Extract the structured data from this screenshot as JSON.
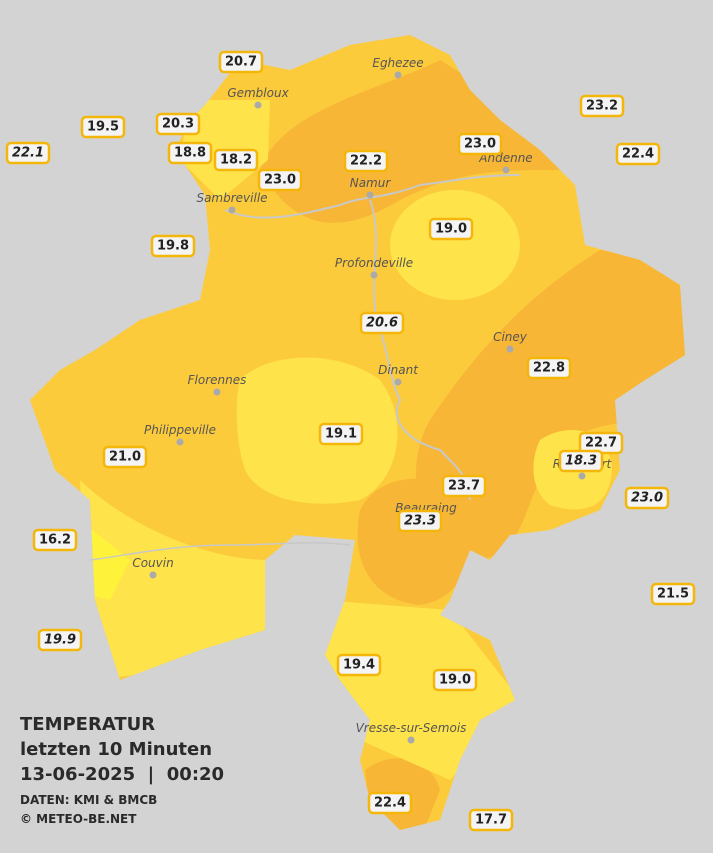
{
  "legend": {
    "title": "TEMPERATUR",
    "subtitle": "letzten 10 Minuten",
    "datetime": "13-06-2025  |  00:20",
    "source": "DATEN: KMI & BMCB",
    "copyright": "© METEO-BE.NET"
  },
  "cities": [
    {
      "name": "Eghezee"
    },
    {
      "name": "Gembloux"
    },
    {
      "name": "Andenne"
    },
    {
      "name": "Namur"
    },
    {
      "name": "Sambreville"
    },
    {
      "name": "Profondeville"
    },
    {
      "name": "Ciney"
    },
    {
      "name": "Dinant"
    },
    {
      "name": "Florennes"
    },
    {
      "name": "Philippeville"
    },
    {
      "name": "Rochefort"
    },
    {
      "name": "Beauraing"
    },
    {
      "name": "Couvin"
    },
    {
      "name": "Vresse-sur-Semois"
    }
  ],
  "stations": [
    {
      "label": "20.7",
      "italic": false
    },
    {
      "label": "19.5",
      "italic": false
    },
    {
      "label": "20.3",
      "italic": false
    },
    {
      "label": "22.1",
      "italic": true
    },
    {
      "label": "18.8",
      "italic": false
    },
    {
      "label": "18.2",
      "italic": false
    },
    {
      "label": "23.0",
      "italic": false
    },
    {
      "label": "22.2",
      "italic": false
    },
    {
      "label": "23.0",
      "italic": false
    },
    {
      "label": "23.2",
      "italic": false
    },
    {
      "label": "22.4",
      "italic": false
    },
    {
      "label": "19.0",
      "italic": false
    },
    {
      "label": "19.8",
      "italic": false
    },
    {
      "label": "20.6",
      "italic": true
    },
    {
      "label": "22.8",
      "italic": false
    },
    {
      "label": "19.1",
      "italic": false
    },
    {
      "label": "22.7",
      "italic": false
    },
    {
      "label": "18.3",
      "italic": true
    },
    {
      "label": "21.0",
      "italic": false
    },
    {
      "label": "23.7",
      "italic": false
    },
    {
      "label": "23.3",
      "italic": true
    },
    {
      "label": "23.0",
      "italic": true
    },
    {
      "label": "16.2",
      "italic": false
    },
    {
      "label": "21.5",
      "italic": false
    },
    {
      "label": "19.9",
      "italic": true
    },
    {
      "label": "19.4",
      "italic": false
    },
    {
      "label": "19.0",
      "italic": false
    },
    {
      "label": "22.4",
      "italic": false
    },
    {
      "label": "17.7",
      "italic": false
    }
  ]
}
